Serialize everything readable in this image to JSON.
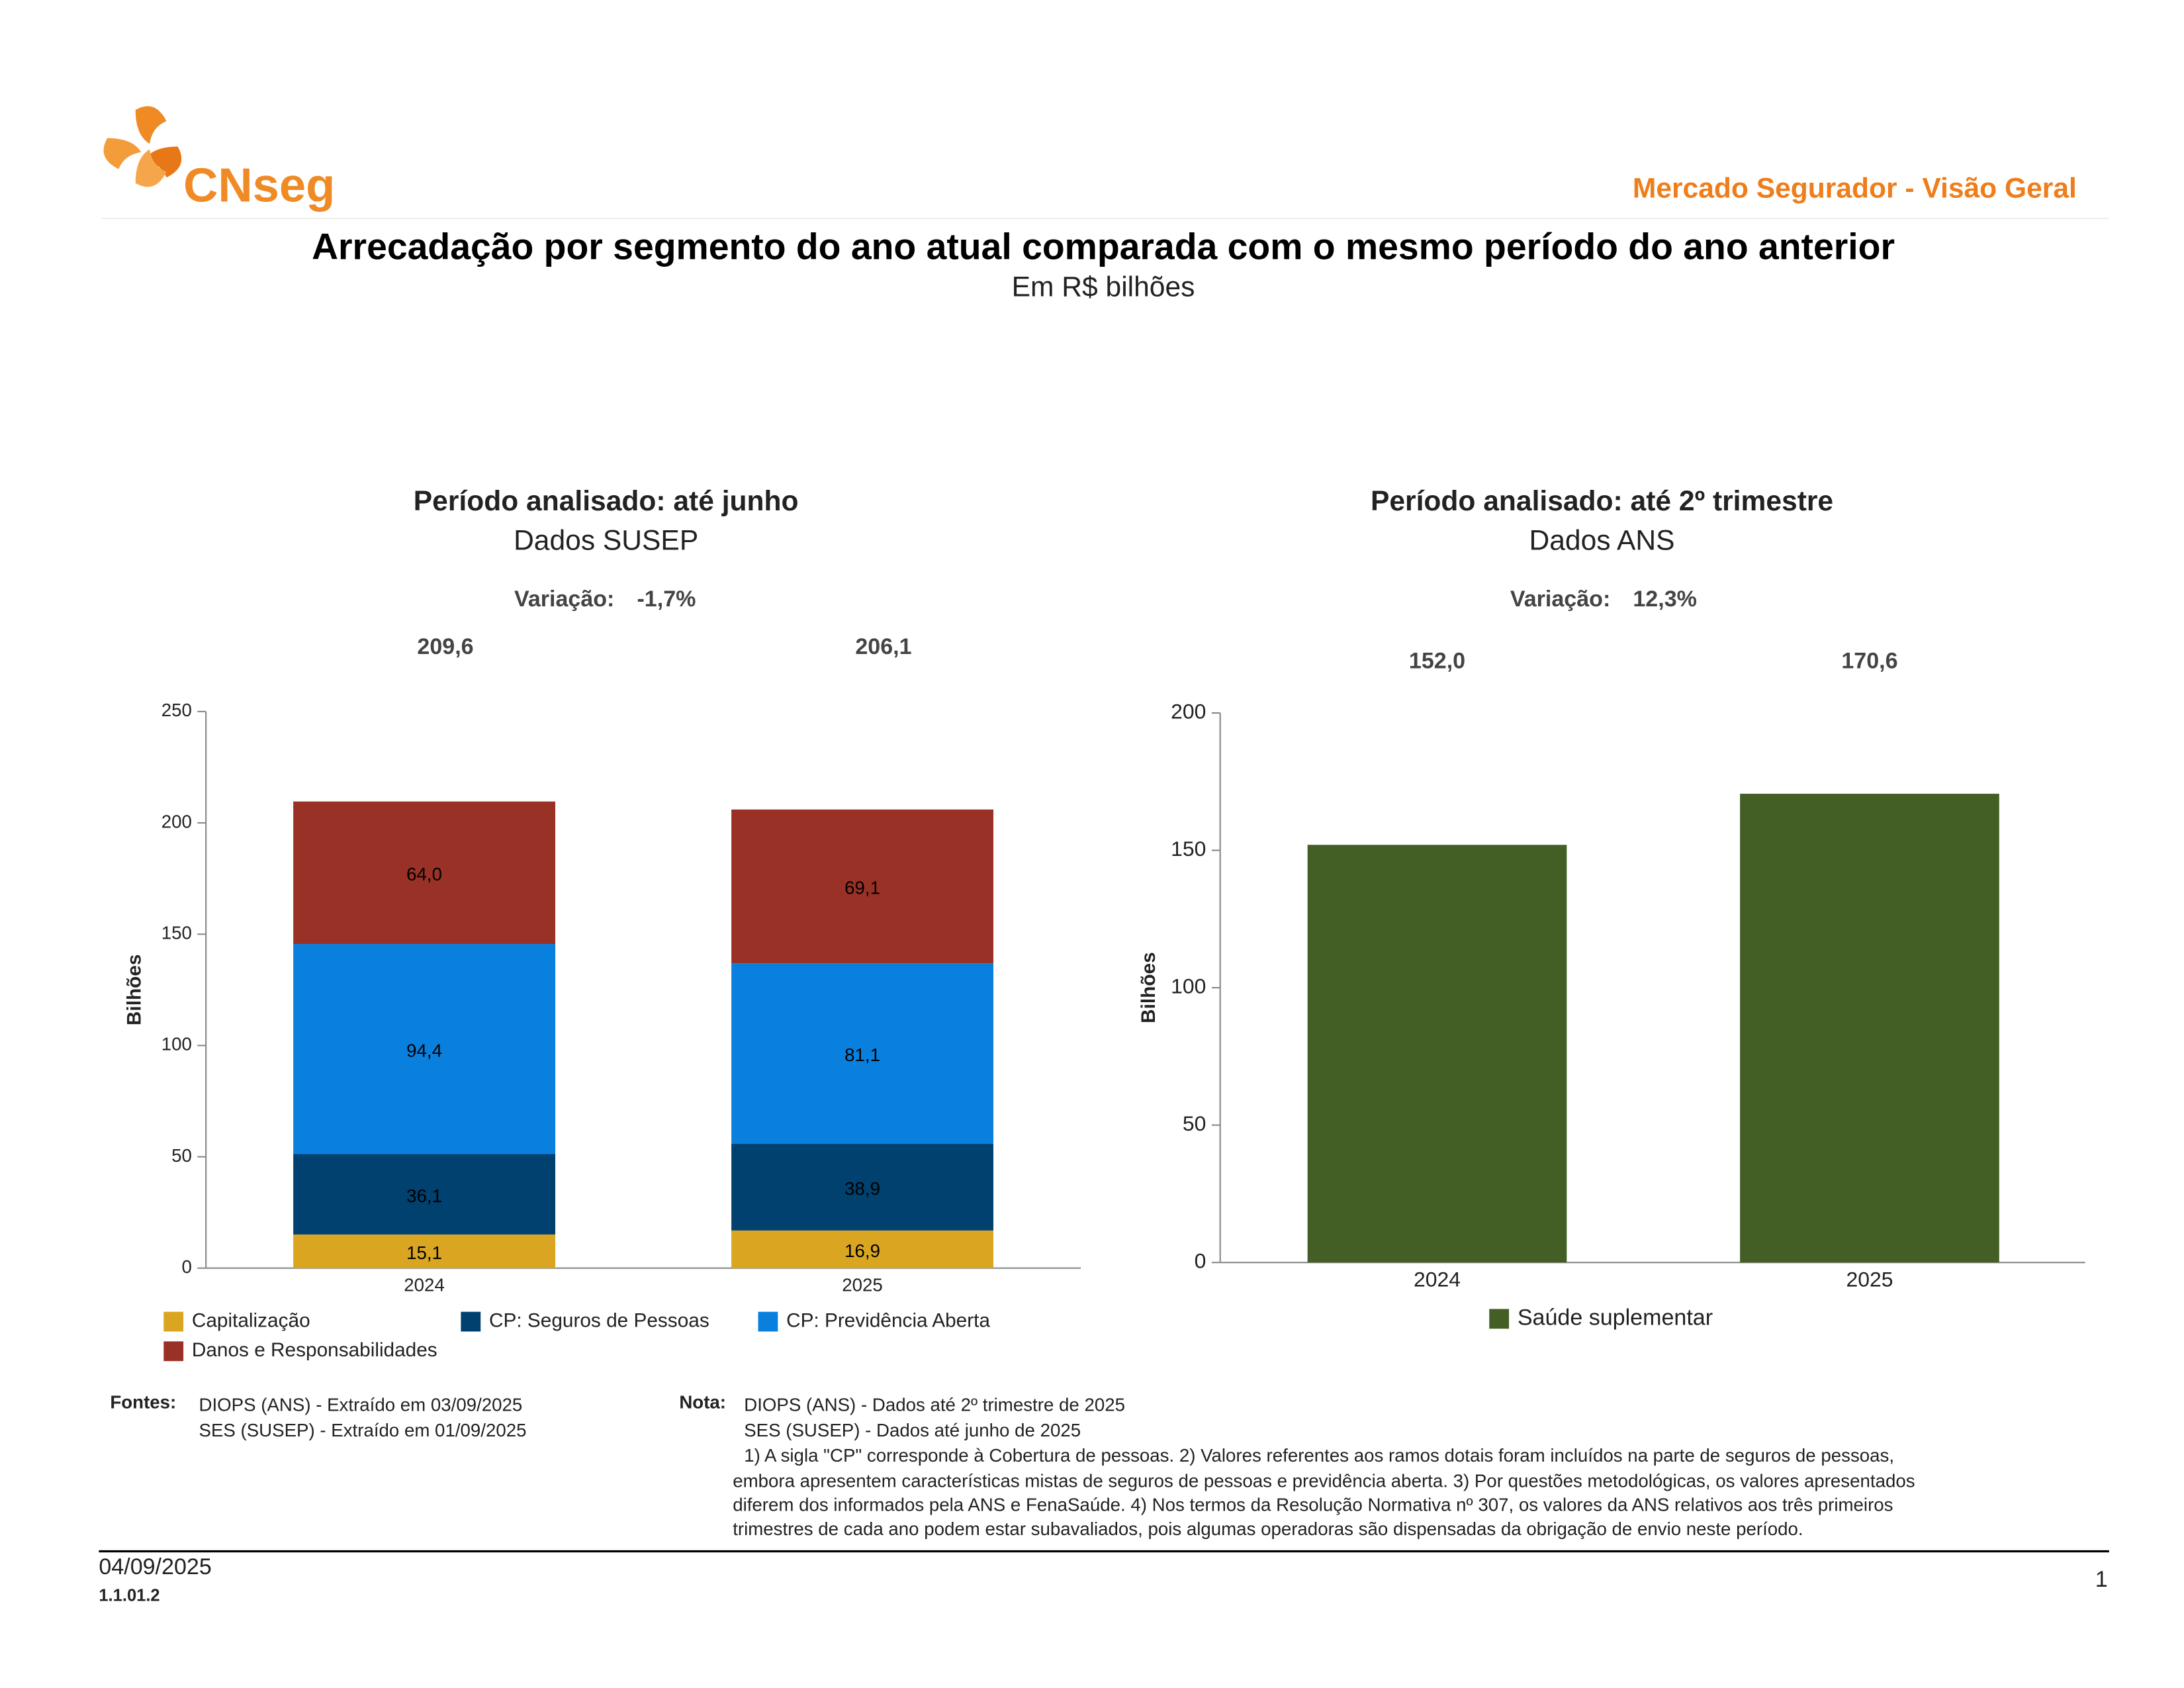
{
  "header": {
    "brand": "CNseg",
    "section": "Mercado Segurador - Visão Geral",
    "title": "Arrecadação por segmento do ano atual comparada com o mesmo período do ano anterior",
    "subtitle": "Em R$ bilhões"
  },
  "chart_data": [
    {
      "type": "bar",
      "stacked": true,
      "title": "Período analisado: até junho",
      "subtitle": "Dados SUSEP",
      "variation_label": "Variação:",
      "variation": {
        "value": -1.7,
        "label": "-1,7%"
      },
      "totals": [
        209.6,
        206.1
      ],
      "total_labels": [
        "209,6",
        "206,1"
      ],
      "ylabel": "Bilhões",
      "categories": [
        "2024",
        "2025"
      ],
      "series": [
        {
          "name": "Capitalização",
          "color": "#daa621",
          "values": [
            15.1,
            16.9
          ],
          "value_labels": [
            "15,1",
            "16,9"
          ]
        },
        {
          "name": "CP: Seguros de Pessoas",
          "color": "#00416f",
          "values": [
            36.1,
            38.9
          ],
          "value_labels": [
            "36,1",
            "38,9"
          ]
        },
        {
          "name": "CP: Previdência Aberta",
          "color": "#0a80de",
          "values": [
            94.4,
            81.1
          ],
          "value_labels": [
            "94,4",
            "81,1"
          ]
        },
        {
          "name": "Danos e Responsabilidades",
          "color": "#9a3126",
          "values": [
            64.0,
            69.1
          ],
          "value_labels": [
            "64,0",
            "69,1"
          ]
        }
      ],
      "ylim": [
        0,
        250
      ],
      "yticks": [
        0,
        50,
        100,
        150,
        200,
        250
      ]
    },
    {
      "type": "bar",
      "stacked": false,
      "title": "Período analisado: até 2º trimestre",
      "subtitle": "Dados ANS",
      "variation_label": "Variação:",
      "variation": {
        "value": 12.3,
        "label": "12,3%"
      },
      "ylabel": "Bilhões",
      "categories": [
        "2024",
        "2025"
      ],
      "series": [
        {
          "name": "Saúde suplementar",
          "color": "#435f25",
          "values": [
            152.0,
            170.6
          ],
          "value_labels": [
            "152,0",
            "170,6"
          ]
        }
      ],
      "ylim": [
        0,
        200
      ],
      "yticks": [
        0,
        50,
        100,
        150,
        200
      ]
    }
  ],
  "sources": {
    "label": "Fontes:",
    "lines": [
      "DIOPS (ANS) -  Extraído em 03/09/2025",
      "SES (SUSEP) -  Extraído em 01/09/2025"
    ]
  },
  "notes": {
    "label": "Nota:",
    "lines": [
      "DIOPS (ANS) - Dados até 2º trimestre de 2025",
      "SES (SUSEP) - Dados até junho de 2025",
      "1) A sigla \"CP\" corresponde à Cobertura de pessoas. 2) Valores referentes aos ramos dotais foram incluídos na parte de seguros de pessoas,",
      "embora apresentem características mistas de seguros de pessoas e previdência aberta. 3) Por questões metodológicas, os valores apresentados",
      "diferem dos informados pela ANS e FenaSaúde. 4) Nos termos da Resolução Normativa nº 307, os valores da ANS relativos aos três primeiros",
      "trimestres de cada ano podem estar subavaliados, pois algumas operadoras são dispensadas da obrigação de envio neste período."
    ]
  },
  "footer": {
    "date": "04/09/2025",
    "code": "1.1.01.2",
    "page": "1"
  }
}
